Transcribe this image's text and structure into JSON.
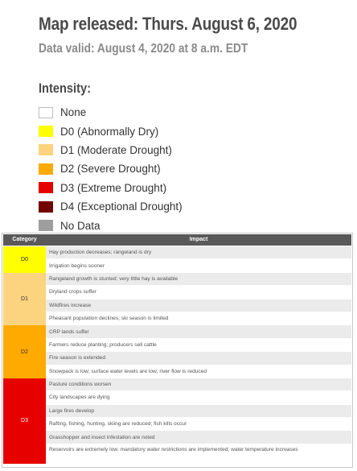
{
  "header": {
    "title": "Map released: Thurs. August 6, 2020",
    "subtitle": "Data valid: August 4, 2020 at 8 a.m. EDT",
    "intensity_label": "Intensity:"
  },
  "legend": [
    {
      "code": "",
      "label": "None",
      "color": "#ffffff",
      "border": "#bdbdbd"
    },
    {
      "code": "D0",
      "label": "(Abnormally Dry)",
      "color": "#ffff00",
      "border": "#ffff00"
    },
    {
      "code": "D1",
      "label": "(Moderate Drought)",
      "color": "#fcd37f",
      "border": "#fcd37f"
    },
    {
      "code": "D2",
      "label": "(Severe Drought)",
      "color": "#ffaa00",
      "border": "#ffaa00"
    },
    {
      "code": "D3",
      "label": "(Extreme Drought)",
      "color": "#e60000",
      "border": "#e60000"
    },
    {
      "code": "D4",
      "label": "(Exceptional Drought)",
      "color": "#730000",
      "border": "#730000"
    },
    {
      "code": "",
      "label": "No Data",
      "color": "#9e9e9e",
      "border": "#9e9e9e"
    }
  ],
  "table": {
    "headers": {
      "category": "Category",
      "impact": "Impact"
    },
    "groups": [
      {
        "category": "D0",
        "color": "#ffff00",
        "text_color": "#222222",
        "impacts": [
          "Hay production decreases; rangeland is dry",
          "Irrigation begins sooner"
        ]
      },
      {
        "category": "D1",
        "color": "#fcd37f",
        "text_color": "#333333",
        "impacts": [
          "Rangeland growth is stunted; very little hay is available",
          "Dryland crops suffer",
          "Wildfires increase",
          "Pheasant population declines; ski season is limited"
        ]
      },
      {
        "category": "D2",
        "color": "#ffaa00",
        "text_color": "#333333",
        "impacts": [
          "CRP lands suffer",
          "Farmers reduce planting; producers sell cattle",
          "Fire season is extended",
          "Snowpack is low; surface water levels are low; river flow is reduced"
        ]
      },
      {
        "category": "D3",
        "color": "#e60000",
        "text_color": "#ffffff",
        "impacts": [
          "Pasture conditions worsen",
          "City landscapes are dying",
          "Large fires develop",
          "Rafting, fishing, hunting, skiing are reduced; fish kills occur",
          "Grasshopper and insect infestation are noted",
          "Reservoirs are extremely low; mandatory water restrictions are implemented; water temperature increases"
        ]
      }
    ]
  }
}
